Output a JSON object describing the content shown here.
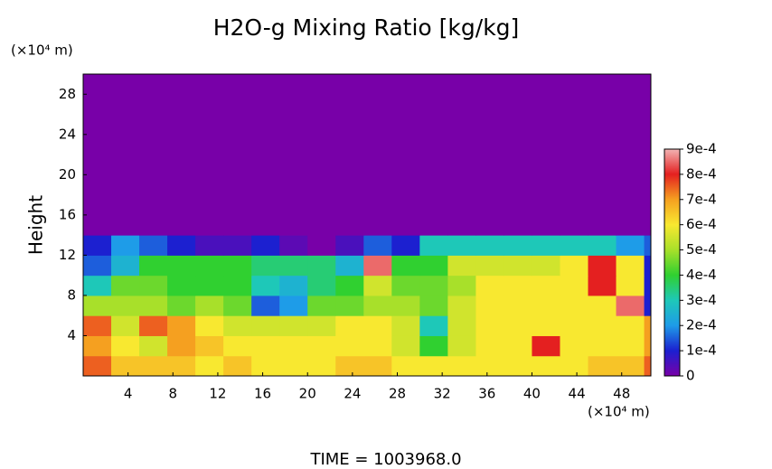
{
  "chart_data": {
    "type": "heatmap",
    "title": "H2O-g Mixing Ratio [kg/kg]",
    "y_label": "Height",
    "y_unit": "(×10⁴ m)",
    "x_unit": "(×10⁴ m)",
    "footer": "TIME = 1003968.0",
    "xlim": [
      0,
      50.6
    ],
    "ylim": [
      0,
      30
    ],
    "xticks": [
      4,
      8,
      12,
      16,
      20,
      24,
      28,
      32,
      36,
      40,
      44,
      48
    ],
    "yticks": [
      4,
      8,
      12,
      16,
      20,
      24,
      28
    ],
    "x_edges": [
      0,
      2.5,
      5,
      7.5,
      10,
      12.5,
      15,
      17.5,
      20,
      22.5,
      25,
      27.5,
      30,
      32.5,
      35,
      37.5,
      40,
      42.5,
      45,
      47.5,
      50,
      50.6
    ],
    "y_edges": [
      0,
      2,
      4,
      6,
      8,
      10,
      12,
      14,
      30
    ],
    "z": [
      [
        0.00075,
        0.00065,
        0.00065,
        0.00065,
        0.0006,
        0.00065,
        0.0006,
        0.0006,
        0.0006,
        0.00065,
        0.00065,
        0.0006,
        0.0006,
        0.0006,
        0.0006,
        0.0006,
        0.0006,
        0.0006,
        0.00065,
        0.00065,
        0.00075
      ],
      [
        0.0007,
        0.0006,
        0.00055,
        0.0007,
        0.00065,
        0.0006,
        0.0006,
        0.0006,
        0.0006,
        0.0006,
        0.0006,
        0.00055,
        0.0004,
        0.00055,
        0.0006,
        0.0006,
        0.0008,
        0.0006,
        0.0006,
        0.0006,
        0.0007
      ],
      [
        0.00075,
        0.00055,
        0.00075,
        0.0007,
        0.0006,
        0.00055,
        0.00055,
        0.00055,
        0.00055,
        0.0006,
        0.0006,
        0.00055,
        0.0003,
        0.00055,
        0.0006,
        0.0006,
        0.0006,
        0.0006,
        0.0006,
        0.0006,
        0.0007
      ],
      [
        0.0005,
        0.0005,
        0.0005,
        0.00045,
        0.0005,
        0.00045,
        0.00015,
        0.0002,
        0.00045,
        0.00045,
        0.0005,
        0.0005,
        0.00045,
        0.00055,
        0.0006,
        0.0006,
        0.0006,
        0.0006,
        0.0006,
        0.00085,
        0.0001
      ],
      [
        0.0003,
        0.00045,
        0.00045,
        0.0004,
        0.0004,
        0.0004,
        0.0003,
        0.00025,
        0.00035,
        0.0004,
        0.00055,
        0.00045,
        0.00045,
        0.0005,
        0.0006,
        0.0006,
        0.0006,
        0.0006,
        0.0008,
        0.0006,
        0.0001
      ],
      [
        0.00015,
        0.00025,
        0.0004,
        0.0004,
        0.0004,
        0.0004,
        0.00035,
        0.00035,
        0.00035,
        0.00025,
        0.00085,
        0.0004,
        0.0004,
        0.00055,
        0.00055,
        0.00055,
        0.00055,
        0.0006,
        0.0008,
        0.0006,
        0.0001
      ],
      [
        0.0001,
        0.0002,
        0.00015,
        0.0001,
        5e-05,
        5e-05,
        0.0001,
        3e-05,
        0,
        5e-05,
        0.00015,
        0.0001,
        0.0003,
        0.0003,
        0.0003,
        0.0003,
        0.0003,
        0.0003,
        0.0003,
        0.0002,
        0.00015
      ],
      [
        0,
        0,
        0,
        0,
        0,
        0,
        0,
        0,
        0,
        0,
        0,
        0,
        0,
        0,
        0,
        0,
        0,
        0,
        0,
        0,
        0
      ]
    ],
    "zlim": [
      0,
      0.0009
    ],
    "colormap": [
      "#7800a8",
      "#1c20d0",
      "#1e9ce8",
      "#1ec8b8",
      "#30d030",
      "#a8e02a",
      "#f8e830",
      "#f5a020",
      "#e42020",
      "#f2b4b4"
    ],
    "zticks": [
      0,
      {
        "value": 0.0001,
        "label": "1e-4"
      },
      {
        "value": 0.0002,
        "label": "2e-4"
      },
      {
        "value": 0.0003,
        "label": "3e-4"
      },
      {
        "value": 0.0004,
        "label": "4e-4"
      },
      {
        "value": 0.0005,
        "label": "5e-4"
      },
      {
        "value": 0.0006,
        "label": "6e-4"
      },
      {
        "value": 0.0007,
        "label": "7e-4"
      },
      {
        "value": 0.0008,
        "label": "8e-4"
      },
      {
        "value": 0.0009,
        "label": "9e-4"
      }
    ]
  }
}
